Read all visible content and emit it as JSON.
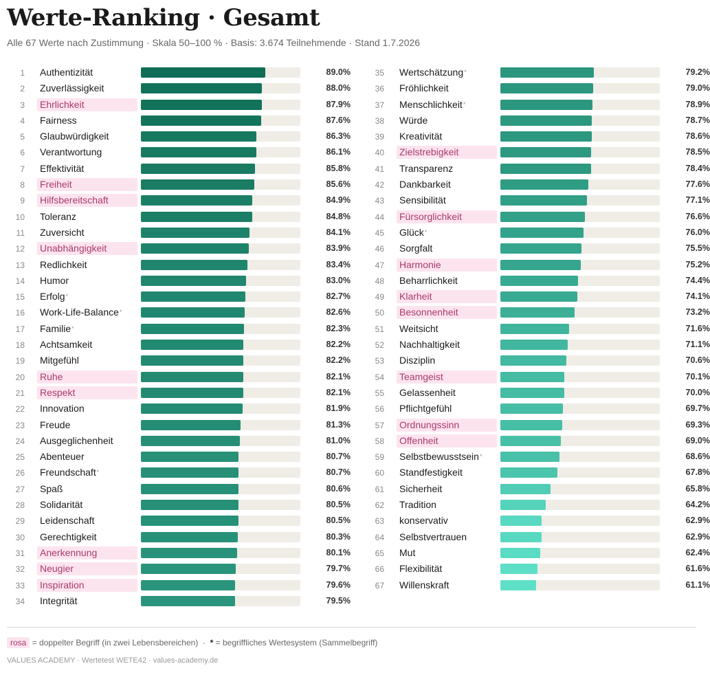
{
  "title": "Werte-Ranking · Gesamt",
  "subtitle": "Alle 67 Werte nach Zustimmung · Skala 50–100 % · Basis: 3.674 Teilnehmende · Stand 1.7.2026",
  "legend": {
    "chip": "rosa",
    "dup_text": "= doppelter Begriff (in zwei Lebensbereichen)",
    "dot": "·",
    "star": "*",
    "star_text": "= begriffliches Wertesystem (Sammelbegriff)"
  },
  "footer": "VALUES ACADEMY · Wertetest WETE42 · values-academy.de",
  "colors": {
    "dark": "#0f6e55",
    "light": "#5ee0c8",
    "track": "#f0ede6",
    "dup_bg": "#fce4ee",
    "dup_text": "#a83a6e"
  },
  "chart_data": {
    "type": "bar",
    "orientation": "horizontal",
    "xlim": [
      50,
      100
    ],
    "unit": "%",
    "items": [
      {
        "rank": "1",
        "name": "Authentizität",
        "value": 89.0,
        "label": "89.0%",
        "dup": false,
        "star": false
      },
      {
        "rank": "2",
        "name": "Zuverlässigkeit",
        "value": 88.0,
        "label": "88.0%",
        "dup": false,
        "star": false
      },
      {
        "rank": "3",
        "name": "Ehrlichkeit",
        "value": 87.9,
        "label": "87.9%",
        "dup": true,
        "star": false
      },
      {
        "rank": "4",
        "name": "Fairness",
        "value": 87.6,
        "label": "87.6%",
        "dup": false,
        "star": false
      },
      {
        "rank": "5",
        "name": "Glaubwürdigkeit",
        "value": 86.3,
        "label": "86.3%",
        "dup": false,
        "star": false
      },
      {
        "rank": "6",
        "name": "Verantwortung",
        "value": 86.1,
        "label": "86.1%",
        "dup": false,
        "star": false
      },
      {
        "rank": "7",
        "name": "Effektivität",
        "value": 85.8,
        "label": "85.8%",
        "dup": false,
        "star": false
      },
      {
        "rank": "8",
        "name": "Freiheit",
        "value": 85.6,
        "label": "85.6%",
        "dup": true,
        "star": false
      },
      {
        "rank": "9",
        "name": "Hilfsbereitschaft",
        "value": 84.9,
        "label": "84.9%",
        "dup": true,
        "star": false
      },
      {
        "rank": "10",
        "name": "Toleranz",
        "value": 84.8,
        "label": "84.8%",
        "dup": false,
        "star": false
      },
      {
        "rank": "11",
        "name": "Zuversicht",
        "value": 84.1,
        "label": "84.1%",
        "dup": false,
        "star": false
      },
      {
        "rank": "12",
        "name": "Unabhängigkeit",
        "value": 83.9,
        "label": "83.9%",
        "dup": true,
        "star": false
      },
      {
        "rank": "13",
        "name": "Redlichkeit",
        "value": 83.4,
        "label": "83.4%",
        "dup": false,
        "star": false
      },
      {
        "rank": "14",
        "name": "Humor",
        "value": 83.0,
        "label": "83.0%",
        "dup": false,
        "star": false
      },
      {
        "rank": "15",
        "name": "Erfolg",
        "value": 82.7,
        "label": "82.7%",
        "dup": false,
        "star": true
      },
      {
        "rank": "16",
        "name": "Work-Life-Balance",
        "value": 82.6,
        "label": "82.6%",
        "dup": false,
        "star": true
      },
      {
        "rank": "17",
        "name": "Familie",
        "value": 82.3,
        "label": "82.3%",
        "dup": false,
        "star": true
      },
      {
        "rank": "18",
        "name": "Achtsamkeit",
        "value": 82.2,
        "label": "82.2%",
        "dup": false,
        "star": false
      },
      {
        "rank": "19",
        "name": "Mitgefühl",
        "value": 82.2,
        "label": "82.2%",
        "dup": false,
        "star": false
      },
      {
        "rank": "20",
        "name": "Ruhe",
        "value": 82.1,
        "label": "82.1%",
        "dup": true,
        "star": false
      },
      {
        "rank": "21",
        "name": "Respekt",
        "value": 82.1,
        "label": "82.1%",
        "dup": true,
        "star": false
      },
      {
        "rank": "22",
        "name": "Innovation",
        "value": 81.9,
        "label": "81.9%",
        "dup": false,
        "star": false
      },
      {
        "rank": "23",
        "name": "Freude",
        "value": 81.3,
        "label": "81.3%",
        "dup": false,
        "star": false
      },
      {
        "rank": "24",
        "name": "Ausgeglichenheit",
        "value": 81.0,
        "label": "81.0%",
        "dup": false,
        "star": false
      },
      {
        "rank": "25",
        "name": "Abenteuer",
        "value": 80.7,
        "label": "80.7%",
        "dup": false,
        "star": false
      },
      {
        "rank": "26",
        "name": "Freundschaft",
        "value": 80.7,
        "label": "80.7%",
        "dup": false,
        "star": true
      },
      {
        "rank": "27",
        "name": "Spaß",
        "value": 80.6,
        "label": "80.6%",
        "dup": false,
        "star": false
      },
      {
        "rank": "28",
        "name": "Solidarität",
        "value": 80.5,
        "label": "80.5%",
        "dup": false,
        "star": false
      },
      {
        "rank": "29",
        "name": "Leidenschaft",
        "value": 80.5,
        "label": "80.5%",
        "dup": false,
        "star": false
      },
      {
        "rank": "30",
        "name": "Gerechtigkeit",
        "value": 80.3,
        "label": "80.3%",
        "dup": false,
        "star": false
      },
      {
        "rank": "31",
        "name": "Anerkennung",
        "value": 80.1,
        "label": "80.1%",
        "dup": true,
        "star": false
      },
      {
        "rank": "32",
        "name": "Neugier",
        "value": 79.7,
        "label": "79.7%",
        "dup": true,
        "star": false
      },
      {
        "rank": "33",
        "name": "Inspiration",
        "value": 79.6,
        "label": "79.6%",
        "dup": true,
        "star": false
      },
      {
        "rank": "34",
        "name": "Integrität",
        "value": 79.5,
        "label": "79.5%",
        "dup": false,
        "star": false
      },
      {
        "rank": "35",
        "name": "Wertschätzung",
        "value": 79.2,
        "label": "79.2%",
        "dup": false,
        "star": true
      },
      {
        "rank": "36",
        "name": "Fröhlichkeit",
        "value": 79.0,
        "label": "79.0%",
        "dup": false,
        "star": false
      },
      {
        "rank": "37",
        "name": "Menschlichkeit",
        "value": 78.9,
        "label": "78.9%",
        "dup": false,
        "star": true
      },
      {
        "rank": "38",
        "name": "Würde",
        "value": 78.7,
        "label": "78.7%",
        "dup": false,
        "star": false
      },
      {
        "rank": "39",
        "name": "Kreativität",
        "value": 78.6,
        "label": "78.6%",
        "dup": false,
        "star": false
      },
      {
        "rank": "40",
        "name": "Zielstrebigkeit",
        "value": 78.5,
        "label": "78.5%",
        "dup": true,
        "star": false
      },
      {
        "rank": "41",
        "name": "Transparenz",
        "value": 78.4,
        "label": "78.4%",
        "dup": false,
        "star": false
      },
      {
        "rank": "42",
        "name": "Dankbarkeit",
        "value": 77.6,
        "label": "77.6%",
        "dup": false,
        "star": false
      },
      {
        "rank": "43",
        "name": "Sensibilität",
        "value": 77.1,
        "label": "77.1%",
        "dup": false,
        "star": false
      },
      {
        "rank": "44",
        "name": "Fürsorglichkeit",
        "value": 76.6,
        "label": "76.6%",
        "dup": true,
        "star": false
      },
      {
        "rank": "45",
        "name": "Glück",
        "value": 76.0,
        "label": "76.0%",
        "dup": false,
        "star": true
      },
      {
        "rank": "46",
        "name": "Sorgfalt",
        "value": 75.5,
        "label": "75.5%",
        "dup": false,
        "star": false
      },
      {
        "rank": "47",
        "name": "Harmonie",
        "value": 75.2,
        "label": "75.2%",
        "dup": true,
        "star": false
      },
      {
        "rank": "48",
        "name": "Beharrlichkeit",
        "value": 74.4,
        "label": "74.4%",
        "dup": false,
        "star": false
      },
      {
        "rank": "49",
        "name": "Klarheit",
        "value": 74.1,
        "label": "74.1%",
        "dup": true,
        "star": false
      },
      {
        "rank": "50",
        "name": "Besonnenheit",
        "value": 73.2,
        "label": "73.2%",
        "dup": true,
        "star": false
      },
      {
        "rank": "51",
        "name": "Weitsicht",
        "value": 71.6,
        "label": "71.6%",
        "dup": false,
        "star": false
      },
      {
        "rank": "52",
        "name": "Nachhaltigkeit",
        "value": 71.1,
        "label": "71.1%",
        "dup": false,
        "star": false
      },
      {
        "rank": "53",
        "name": "Disziplin",
        "value": 70.6,
        "label": "70.6%",
        "dup": false,
        "star": false
      },
      {
        "rank": "54",
        "name": "Teamgeist",
        "value": 70.1,
        "label": "70.1%",
        "dup": true,
        "star": false
      },
      {
        "rank": "55",
        "name": "Gelassenheit",
        "value": 70.0,
        "label": "70.0%",
        "dup": false,
        "star": false
      },
      {
        "rank": "56",
        "name": "Pflichtgefühl",
        "value": 69.7,
        "label": "69.7%",
        "dup": false,
        "star": false
      },
      {
        "rank": "57",
        "name": "Ordnungssinn",
        "value": 69.3,
        "label": "69.3%",
        "dup": true,
        "star": false
      },
      {
        "rank": "58",
        "name": "Offenheit",
        "value": 69.0,
        "label": "69.0%",
        "dup": true,
        "star": false
      },
      {
        "rank": "59",
        "name": "Selbstbewusstsein",
        "value": 68.6,
        "label": "68.6%",
        "dup": false,
        "star": true
      },
      {
        "rank": "60",
        "name": "Standfestigkeit",
        "value": 67.8,
        "label": "67.8%",
        "dup": false,
        "star": false
      },
      {
        "rank": "61",
        "name": "Sicherheit",
        "value": 65.8,
        "label": "65.8%",
        "dup": false,
        "star": false
      },
      {
        "rank": "62",
        "name": "Tradition",
        "value": 64.2,
        "label": "64.2%",
        "dup": false,
        "star": false
      },
      {
        "rank": "63",
        "name": "konservativ",
        "value": 62.9,
        "label": "62.9%",
        "dup": false,
        "star": false
      },
      {
        "rank": "64",
        "name": "Selbstvertrauen",
        "value": 62.9,
        "label": "62.9%",
        "dup": false,
        "star": false
      },
      {
        "rank": "65",
        "name": "Mut",
        "value": 62.4,
        "label": "62.4%",
        "dup": false,
        "star": false
      },
      {
        "rank": "66",
        "name": "Flexibilität",
        "value": 61.6,
        "label": "61.6%",
        "dup": false,
        "star": false
      },
      {
        "rank": "67",
        "name": "Willenskraft",
        "value": 61.1,
        "label": "61.1%",
        "dup": false,
        "star": false
      }
    ]
  }
}
